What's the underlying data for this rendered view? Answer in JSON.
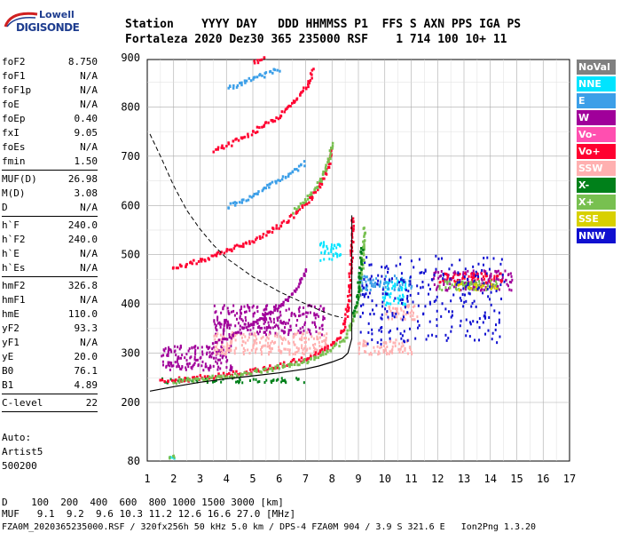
{
  "logo": {
    "line1": "Lowell",
    "line2": "DIGISONDE"
  },
  "header": {
    "row1": "Station    YYYY DAY   DDD HHMMSS P1  FFS S AXN PPS IGA PS",
    "row2": "Fortaleza 2020 Dez30 365 235000 RSF    1 714 100 10+ 11"
  },
  "params": [
    {
      "label": "foF2",
      "value": "8.750",
      "sep": false
    },
    {
      "label": "foF1",
      "value": "N/A",
      "sep": false
    },
    {
      "label": "foF1p",
      "value": "N/A",
      "sep": false
    },
    {
      "label": "foE",
      "value": "N/A",
      "sep": false
    },
    {
      "label": "foEp",
      "value": "0.40",
      "sep": false
    },
    {
      "label": "fxI",
      "value": "9.05",
      "sep": false
    },
    {
      "label": "foEs",
      "value": "N/A",
      "sep": false
    },
    {
      "label": "fmin",
      "value": "1.50",
      "sep": true
    },
    {
      "label": "MUF(D)",
      "value": "26.98",
      "sep": false
    },
    {
      "label": "M(D)",
      "value": "3.08",
      "sep": false
    },
    {
      "label": "D",
      "value": "N/A",
      "sep": true
    },
    {
      "label": "h`F",
      "value": "240.0",
      "sep": false
    },
    {
      "label": "h`F2",
      "value": "240.0",
      "sep": false
    },
    {
      "label": "h`E",
      "value": "N/A",
      "sep": false
    },
    {
      "label": "h`Es",
      "value": "N/A",
      "sep": true
    },
    {
      "label": "hmF2",
      "value": "326.8",
      "sep": false
    },
    {
      "label": "hmF1",
      "value": "N/A",
      "sep": false
    },
    {
      "label": "hmE",
      "value": "110.0",
      "sep": false
    },
    {
      "label": "yF2",
      "value": "93.3",
      "sep": false
    },
    {
      "label": "yF1",
      "value": "N/A",
      "sep": false
    },
    {
      "label": "yE",
      "value": "20.0",
      "sep": false
    },
    {
      "label": "B0",
      "value": "76.1",
      "sep": false
    },
    {
      "label": "B1",
      "value": "4.89",
      "sep": true
    },
    {
      "label": "C-level",
      "value": "22",
      "sep": true
    }
  ],
  "autoscaling": {
    "line1": "Auto:",
    "line2": "Artist5",
    "line3": "500200"
  },
  "footer": {
    "distance": "D    100  200  400  600  800 1000 1500 3000 [km]",
    "muf": "MUF   9.1  9.2  9.6 10.3 11.2 12.6 16.6 27.0 [MHz]",
    "file": "FZA0M_2020365235000.RSF / 320fx256h 50 kHz 5.0 km / DPS-4 FZA0M 904 / 3.9 S 321.6 E   Ion2Png 1.3.20"
  },
  "legend": [
    {
      "label": "NoVal",
      "color": "#808080"
    },
    {
      "label": "NNE",
      "color": "#00e4ff"
    },
    {
      "label": "E",
      "color": "#3c9fe8"
    },
    {
      "label": "W",
      "color": "#a0009a"
    },
    {
      "label": "Vo-",
      "color": "#ff4fb0"
    },
    {
      "label": "Vo+",
      "color": "#ff0030"
    },
    {
      "label": "SSW",
      "color": "#ffb0b0"
    },
    {
      "label": "X-",
      "color": "#00801a"
    },
    {
      "label": "X+",
      "color": "#78c050"
    },
    {
      "label": "SSE",
      "color": "#d8d000"
    },
    {
      "label": "NNW",
      "color": "#1010d0"
    }
  ],
  "chart_data": {
    "type": "scatter",
    "title": "",
    "xlabel": "",
    "ylabel": "",
    "x_ticks": [
      1,
      2,
      3,
      4,
      5,
      6,
      7,
      8,
      9,
      10,
      11,
      12,
      13,
      14,
      15,
      16,
      17
    ],
    "y_ticks": [
      80,
      200,
      300,
      400,
      500,
      600,
      700,
      800,
      900
    ],
    "xlim": [
      1,
      17
    ],
    "ylim": [
      80,
      900
    ],
    "grid": true,
    "series": [
      {
        "color": "#ff0030",
        "points": [
          [
            1.5,
            247
          ],
          [
            2.0,
            248
          ],
          [
            2.5,
            250
          ],
          [
            3.0,
            253
          ],
          [
            3.5,
            256
          ],
          [
            4.0,
            259
          ],
          [
            4.5,
            263
          ],
          [
            5.0,
            267
          ],
          [
            5.5,
            272
          ],
          [
            6.0,
            278
          ],
          [
            6.5,
            285
          ],
          [
            7.0,
            292
          ],
          [
            7.5,
            304
          ],
          [
            8.0,
            320
          ],
          [
            8.3,
            340
          ],
          [
            8.5,
            370
          ],
          [
            8.6,
            420
          ],
          [
            8.7,
            500
          ],
          [
            8.75,
            580
          ]
        ]
      },
      {
        "color": "#78c050",
        "points": [
          [
            2.0,
            245
          ],
          [
            3.0,
            250
          ],
          [
            4.0,
            256
          ],
          [
            5.0,
            264
          ],
          [
            6.0,
            274
          ],
          [
            7.0,
            287
          ],
          [
            7.5,
            297
          ],
          [
            8.0,
            312
          ],
          [
            8.5,
            335
          ],
          [
            8.8,
            370
          ],
          [
            9.0,
            420
          ],
          [
            9.1,
            470
          ],
          [
            9.2,
            560
          ]
        ]
      },
      {
        "color": "#00801a",
        "points": [
          [
            8.8,
            380
          ],
          [
            8.95,
            420
          ],
          [
            9.05,
            480
          ],
          [
            9.1,
            520
          ]
        ]
      },
      {
        "color": "#ff0030",
        "points": [
          [
            1.9,
            475
          ],
          [
            2.5,
            483
          ],
          [
            3.0,
            491
          ],
          [
            3.5,
            500
          ],
          [
            4.0,
            510
          ],
          [
            4.5,
            520
          ],
          [
            5.0,
            532
          ],
          [
            5.5,
            546
          ],
          [
            6.0,
            562
          ],
          [
            6.5,
            582
          ],
          [
            7.0,
            606
          ],
          [
            7.5,
            640
          ],
          [
            7.8,
            680
          ],
          [
            8.0,
            725
          ]
        ]
      },
      {
        "color": "#78c050",
        "points": [
          [
            6.5,
            590
          ],
          [
            7.0,
            614
          ],
          [
            7.5,
            648
          ],
          [
            7.8,
            690
          ],
          [
            8.0,
            730
          ]
        ]
      },
      {
        "color": "#a0009a",
        "points": [
          [
            3.5,
            322
          ],
          [
            4.0,
            332
          ],
          [
            4.5,
            346
          ],
          [
            5.0,
            362
          ],
          [
            5.5,
            380
          ],
          [
            6.0,
            400
          ],
          [
            6.5,
            424
          ],
          [
            6.8,
            450
          ],
          [
            7.0,
            478
          ]
        ]
      },
      {
        "color": "#ff0030",
        "points": [
          [
            3.5,
            712
          ],
          [
            4.0,
            725
          ],
          [
            4.5,
            738
          ],
          [
            5.0,
            752
          ],
          [
            5.5,
            768
          ],
          [
            6.0,
            786
          ],
          [
            6.5,
            810
          ],
          [
            7.0,
            845
          ],
          [
            7.3,
            880
          ]
        ]
      },
      {
        "color": "#3c9fe8",
        "points": [
          [
            4.0,
            840
          ],
          [
            4.5,
            850
          ],
          [
            5.0,
            860
          ],
          [
            5.5,
            870
          ],
          [
            6.0,
            880
          ]
        ]
      },
      {
        "color": "#3c9fe8",
        "points": [
          [
            4.0,
            600
          ],
          [
            4.5,
            610
          ],
          [
            5.0,
            624
          ],
          [
            5.5,
            640
          ],
          [
            6.0,
            655
          ],
          [
            6.5,
            670
          ],
          [
            7.0,
            690
          ]
        ]
      },
      {
        "color": "#ff0030",
        "points": [
          [
            5.0,
            895
          ],
          [
            5.5,
            900
          ]
        ]
      }
    ],
    "clusters": [
      {
        "color": "#a0009a",
        "x": [
          3.5,
          7.8
        ],
        "y": [
          340,
          400
        ]
      },
      {
        "color": "#a0009a",
        "x": [
          1.5,
          4.2
        ],
        "y": [
          268,
          318
        ]
      },
      {
        "color": "#ffb0b0",
        "x": [
          3.5,
          7.8
        ],
        "y": [
          300,
          345
        ]
      },
      {
        "color": "#ffb0b0",
        "x": [
          8.9,
          11.0
        ],
        "y": [
          300,
          330
        ]
      },
      {
        "color": "#ffb0b0",
        "x": [
          10.0,
          11.2
        ],
        "y": [
          370,
          400
        ]
      },
      {
        "color": "#00e4ff",
        "x": [
          9.9,
          10.8
        ],
        "y": [
          400,
          450
        ]
      },
      {
        "color": "#3c9fe8",
        "x": [
          9.0,
          11.0
        ],
        "y": [
          430,
          460
        ]
      },
      {
        "color": "#a0009a",
        "x": [
          11.8,
          14.8
        ],
        "y": [
          430,
          470
        ]
      },
      {
        "color": "#ff0030",
        "x": [
          12.0,
          14.5
        ],
        "y": [
          445,
          465
        ]
      },
      {
        "color": "#78c050",
        "x": [
          12.0,
          14.3
        ],
        "y": [
          430,
          450
        ]
      },
      {
        "color": "#d8d000",
        "x": [
          12.5,
          14.3
        ],
        "y": [
          430,
          445
        ]
      },
      {
        "color": "#1010d0",
        "x": [
          9.0,
          14.5
        ],
        "y": [
          320,
          500
        ]
      },
      {
        "color": "#00e4ff",
        "x": [
          7.5,
          8.3
        ],
        "y": [
          490,
          530
        ]
      },
      {
        "color": "#00801a",
        "x": [
          1.5,
          7.0
        ],
        "y": [
          242,
          252
        ]
      },
      {
        "color": "#00e4ff",
        "x": [
          1.8,
          2.0
        ],
        "y": [
          84,
          92
        ]
      },
      {
        "color": "#78c050",
        "x": [
          1.8,
          2.0
        ],
        "y": [
          88,
          95
        ]
      }
    ],
    "profile_curve": [
      [
        1.1,
        223
      ],
      [
        2.0,
        232
      ],
      [
        3.0,
        241
      ],
      [
        4.0,
        248
      ],
      [
        5.0,
        254
      ],
      [
        6.0,
        260
      ],
      [
        7.0,
        268
      ],
      [
        7.5,
        274
      ],
      [
        8.0,
        282
      ],
      [
        8.4,
        290
      ],
      [
        8.6,
        300
      ],
      [
        8.75,
        330
      ]
    ],
    "dashed_curve": [
      [
        1.1,
        745
      ],
      [
        1.5,
        700
      ],
      [
        2.0,
        640
      ],
      [
        2.5,
        590
      ],
      [
        3.0,
        552
      ],
      [
        3.5,
        520
      ],
      [
        4.0,
        493
      ],
      [
        5.0,
        455
      ],
      [
        6.0,
        425
      ],
      [
        7.0,
        400
      ],
      [
        7.5,
        388
      ],
      [
        8.0,
        377
      ],
      [
        8.4,
        372
      ]
    ],
    "vertical_line_x": 8.75
  }
}
